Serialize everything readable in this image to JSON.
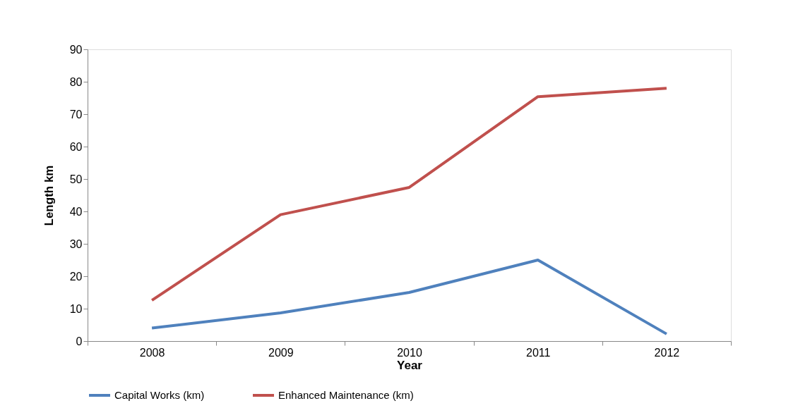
{
  "chart_data": {
    "type": "line",
    "xlabel": "Year",
    "ylabel": "Length km",
    "categories": [
      "2008",
      "2009",
      "2010",
      "2011",
      "2012"
    ],
    "series": [
      {
        "name": "Capital Works (km)",
        "color": "#4f81bd",
        "values": [
          4,
          8.7,
          15,
          25,
          2.2
        ]
      },
      {
        "name": "Enhanced Maintenance (km)",
        "color": "#c0504d",
        "values": [
          12.6,
          39,
          47.4,
          75.4,
          78
        ]
      }
    ],
    "ylim": [
      0,
      90
    ],
    "yticks": [
      0,
      10,
      20,
      30,
      40,
      50,
      60,
      70,
      80,
      90
    ],
    "grid": false,
    "legend": "bottom",
    "marker": "none",
    "line_style": "solid"
  }
}
